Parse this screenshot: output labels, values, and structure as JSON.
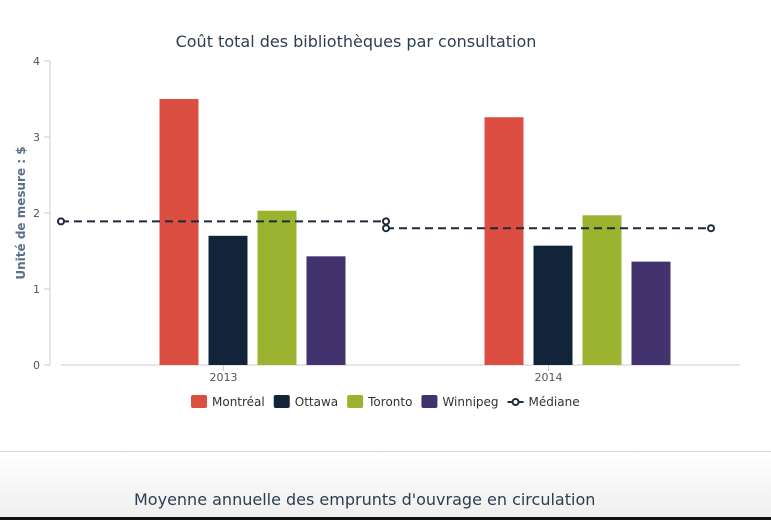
{
  "chart_data": {
    "type": "bar",
    "title": "Coût total des bibliothèques par consultation",
    "xlabel": "",
    "ylabel": "Unité de mesure : $",
    "ylim": [
      0,
      4
    ],
    "yticks": [
      "0",
      "1",
      "2",
      "3",
      "4"
    ],
    "categories": [
      "2013",
      "2014"
    ],
    "grid": false,
    "legend_position": "bottom",
    "series": [
      {
        "name": "Montréal",
        "type": "bar",
        "color": "#dc4e41",
        "values": [
          3.5,
          3.26
        ]
      },
      {
        "name": "Ottawa",
        "type": "bar",
        "color": "#12243a",
        "values": [
          1.7,
          1.57
        ]
      },
      {
        "name": "Toronto",
        "type": "bar",
        "color": "#9bb32e",
        "values": [
          2.03,
          1.97
        ]
      },
      {
        "name": "Winnipeg",
        "type": "bar",
        "color": "#42336e",
        "values": [
          1.43,
          1.36
        ]
      },
      {
        "name": "Médiane",
        "type": "line-dashed",
        "color": "#1c2a3a",
        "values": [
          1.89,
          1.8
        ]
      }
    ]
  },
  "next_section": {
    "title": "Moyenne annuelle des emprunts d'ouvrage en circulation"
  }
}
